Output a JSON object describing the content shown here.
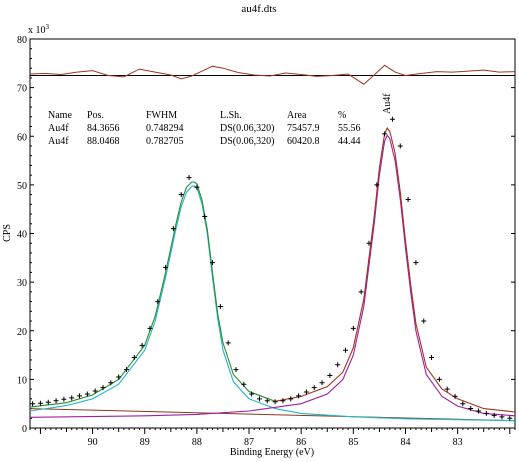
{
  "chart_data": {
    "type": "line",
    "title": "au4f.dts",
    "xlabel": "Binding Energy (eV)",
    "ylabel": "CPS",
    "scale_label": "x 10",
    "scale_exp": "3",
    "x_reversed": true,
    "xlim": [
      91.2,
      81.9
    ],
    "ylim": [
      0,
      80
    ],
    "x_ticks": [
      "90",
      "89",
      "88",
      "87",
      "86",
      "85",
      "84",
      "83"
    ],
    "y_ticks": [
      "0",
      "10",
      "20",
      "30",
      "40",
      "50",
      "60",
      "70",
      "80"
    ],
    "residual_baseline": 72.5,
    "peak_label": "Au4f",
    "peak_label_x": 84.35,
    "table": {
      "headers": [
        "Name",
        "Pos.",
        "FWHM",
        "L.Sh.",
        "Area",
        "%"
      ],
      "rows": [
        {
          "name": "Au4f",
          "pos": "84.3656",
          "fwhm": "0.748294",
          "lsh": "DS(0.06,320)",
          "area": "75457.9",
          "pct": "55.56",
          "color": "#a01fa0"
        },
        {
          "name": "Au4f",
          "pos": "88.0468",
          "fwhm": "0.782705",
          "lsh": "DS(0.06,320)",
          "area": "60420.8",
          "pct": "44.44",
          "color": "#1fb8c8"
        }
      ]
    },
    "background": {
      "x": [
        91.2,
        81.9
      ],
      "y": [
        4.0,
        1.5
      ]
    },
    "series": [
      {
        "color": "#1fb8c8",
        "role": "component",
        "x": [
          91.2,
          90.5,
          90.0,
          89.5,
          89.0,
          88.8,
          88.6,
          88.4,
          88.3,
          88.2,
          88.1,
          88.05,
          88.0,
          87.9,
          87.8,
          87.7,
          87.6,
          87.5,
          87.3,
          87.0,
          86.5,
          86.0,
          85.0,
          84.0,
          83.0,
          81.9
        ],
        "y": [
          3.5,
          4.6,
          6.0,
          9.0,
          16.0,
          22.0,
          31.0,
          41.0,
          45.5,
          48.5,
          49.7,
          49.8,
          49.4,
          46.0,
          40.0,
          31.0,
          22.5,
          16.0,
          9.5,
          6.0,
          4.0,
          3.0,
          2.3,
          1.9,
          1.7,
          1.5
        ]
      },
      {
        "color": "#a01fa0",
        "role": "component",
        "x": [
          91.2,
          89.0,
          88.0,
          87.0,
          86.0,
          85.5,
          85.2,
          85.0,
          84.8,
          84.6,
          84.5,
          84.4,
          84.35,
          84.3,
          84.2,
          84.1,
          84.0,
          83.9,
          83.8,
          83.6,
          83.3,
          83.0,
          82.5,
          81.9
        ],
        "y": [
          2.2,
          2.5,
          2.8,
          3.5,
          5.0,
          7.0,
          10.0,
          15.0,
          25.0,
          42.0,
          52.0,
          59.0,
          60.2,
          59.5,
          55.0,
          47.0,
          37.0,
          28.0,
          20.0,
          11.0,
          6.5,
          4.5,
          3.0,
          2.5
        ]
      },
      {
        "color": "#2e8b2e",
        "role": "envelope",
        "x": [
          91.2,
          90.5,
          90.0,
          89.5,
          89.0,
          88.8,
          88.6,
          88.4,
          88.3,
          88.2,
          88.1,
          88.05,
          88.0,
          87.9,
          87.8,
          87.7,
          87.6,
          87.5,
          87.3,
          87.0,
          86.5
        ],
        "y": [
          4.3,
          5.2,
          6.8,
          10.0,
          17.0,
          23.0,
          32.0,
          42.0,
          46.5,
          49.5,
          50.6,
          50.6,
          50.2,
          46.8,
          40.8,
          32.0,
          23.5,
          17.5,
          11.0,
          7.5,
          5.5
        ]
      },
      {
        "color": "#a0341f",
        "role": "envelope",
        "x": [
          86.5,
          86.0,
          85.5,
          85.2,
          85.0,
          84.8,
          84.6,
          84.5,
          84.4,
          84.35,
          84.3,
          84.2,
          84.1,
          84.0,
          83.9,
          83.8,
          83.6,
          83.3,
          83.0,
          82.5,
          81.9
        ],
        "y": [
          5.5,
          6.5,
          8.5,
          11.5,
          16.5,
          26.5,
          43.5,
          53.5,
          60.5,
          61.7,
          61.0,
          56.5,
          48.5,
          38.5,
          29.5,
          21.5,
          12.5,
          8.0,
          6.0,
          4.0,
          3.3
        ]
      }
    ],
    "data_points": {
      "x": [
        91.15,
        91.0,
        90.85,
        90.7,
        90.55,
        90.4,
        90.25,
        90.1,
        89.95,
        89.8,
        89.65,
        89.5,
        89.35,
        89.2,
        89.05,
        88.9,
        88.75,
        88.6,
        88.45,
        88.3,
        88.15,
        88.0,
        87.85,
        87.7,
        87.55,
        87.4,
        87.25,
        87.1,
        86.95,
        86.8,
        86.65,
        86.5,
        86.35,
        86.2,
        86.05,
        85.9,
        85.75,
        85.6,
        85.45,
        85.3,
        85.15,
        85.0,
        84.85,
        84.7,
        84.55,
        84.4,
        84.25,
        84.1,
        83.95,
        83.8,
        83.65,
        83.5,
        83.35,
        83.2,
        83.05,
        82.9,
        82.75,
        82.6,
        82.45,
        82.3,
        82.15,
        82.0
      ],
      "y": [
        5.0,
        5.1,
        5.3,
        5.6,
        5.9,
        6.2,
        6.6,
        7.0,
        7.6,
        8.3,
        9.3,
        10.5,
        12.0,
        14.5,
        17.0,
        20.5,
        26.0,
        33.0,
        41.0,
        48.0,
        51.5,
        49.5,
        43.5,
        34.0,
        25.0,
        17.5,
        12.0,
        9.0,
        7.0,
        6.0,
        5.6,
        5.4,
        5.6,
        6.0,
        6.6,
        7.4,
        8.3,
        9.3,
        10.8,
        13.0,
        16.0,
        20.5,
        28.0,
        38.0,
        50.0,
        60.5,
        63.5,
        58.0,
        47.0,
        34.0,
        22.0,
        14.5,
        10.0,
        8.0,
        6.5,
        5.0,
        4.0,
        3.5,
        3.0,
        2.6,
        2.3,
        2.0
      ]
    },
    "residual": {
      "color": "#a0341f",
      "x": [
        91.2,
        90.9,
        90.6,
        90.3,
        90.0,
        89.7,
        89.4,
        89.1,
        88.8,
        88.5,
        88.3,
        88.1,
        87.9,
        87.7,
        87.5,
        87.2,
        86.9,
        86.6,
        86.3,
        86.0,
        85.7,
        85.4,
        85.1,
        84.8,
        84.6,
        84.4,
        84.2,
        84.0,
        83.7,
        83.4,
        83.1,
        82.8,
        82.5,
        82.2,
        81.9
      ],
      "y": [
        72.8,
        72.9,
        72.7,
        73.2,
        73.5,
        72.5,
        72.2,
        73.8,
        73.2,
        72.6,
        71.8,
        72.4,
        73.4,
        74.4,
        74.0,
        73.1,
        72.6,
        72.4,
        73.0,
        72.7,
        72.3,
        72.5,
        72.8,
        70.7,
        72.6,
        74.6,
        73.2,
        72.5,
        72.9,
        73.3,
        73.2,
        73.4,
        73.6,
        73.2,
        73.3
      ]
    }
  }
}
